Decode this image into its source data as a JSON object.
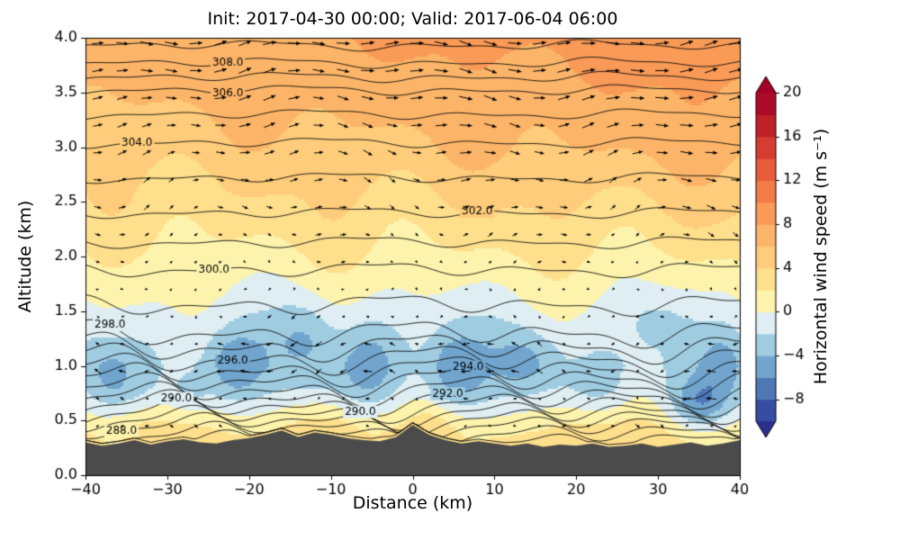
{
  "figure": {
    "title": "Init: 2017-04-30 00:00; Valid: 2017-06-04 06:00",
    "xlabel": "Distance (km)",
    "ylabel": "Altitude (km)",
    "colorbar_label": "Horizontal wind speed (m s⁻¹)"
  },
  "chart_data": {
    "type": "heatmap",
    "subtype": "filled-contour cross-section with potential-temperature contour lines and wind-vector quiver",
    "title": "Init: 2017-04-30 00:00; Valid: 2017-06-04 06:00",
    "xlabel": "Distance (km)",
    "ylabel": "Altitude (km)",
    "xlim": [
      -40,
      40
    ],
    "ylim": [
      0,
      4
    ],
    "grid": false,
    "x_ticks": {
      "values": [
        -40,
        -30,
        -20,
        -10,
        0,
        10,
        20,
        30,
        40
      ],
      "labels": [
        "−40",
        "−30",
        "−20",
        "−10",
        "0",
        "10",
        "20",
        "30",
        "40"
      ]
    },
    "y_ticks": {
      "values": [
        0,
        0.5,
        1.0,
        1.5,
        2.0,
        2.5,
        3.0,
        3.5,
        4.0
      ],
      "labels": [
        "0.0",
        "0.5",
        "1.0",
        "1.5",
        "2.0",
        "2.5",
        "3.0",
        "3.5",
        "4.0"
      ]
    },
    "colorbar": {
      "label": "Horizontal wind speed (m s⁻¹)",
      "tick_values": [
        20,
        16,
        12,
        8,
        4,
        0,
        -4,
        -8
      ],
      "tick_labels": [
        "20",
        "16",
        "12",
        "8",
        "4",
        "0",
        "−4",
        "−8"
      ],
      "vmin": -10,
      "vmax": 20,
      "band_step": 2,
      "extend": "both",
      "colormap": "RdYlBu_r",
      "under_color": "#2b2f8c",
      "over_color": "#a50026",
      "colormap_stops": [
        [
          -10,
          "#2d3a96"
        ],
        [
          -8,
          "#3f5fab"
        ],
        [
          -6,
          "#5c8ec1"
        ],
        [
          -4,
          "#86bcd8"
        ],
        [
          -2,
          "#b8dcea"
        ],
        [
          -1,
          "#dfeef2"
        ],
        [
          0,
          "#f7f7c3"
        ],
        [
          1,
          "#fdf3ac"
        ],
        [
          2,
          "#fee795"
        ],
        [
          4,
          "#fed683"
        ],
        [
          6,
          "#fdc171"
        ],
        [
          8,
          "#fba95e"
        ],
        [
          10,
          "#f78b4d"
        ],
        [
          12,
          "#ef6c42"
        ],
        [
          14,
          "#e04c36"
        ],
        [
          16,
          "#cc2d2b"
        ],
        [
          18,
          "#b41427"
        ],
        [
          20,
          "#a50026"
        ]
      ]
    },
    "wind_field": {
      "units": "m s⁻¹",
      "profile": [
        [
          0.0,
          1.8
        ],
        [
          0.3,
          2.4
        ],
        [
          0.45,
          1.4
        ],
        [
          0.6,
          0.0
        ],
        [
          0.8,
          -1.6
        ],
        [
          1.0,
          -2.2
        ],
        [
          1.2,
          -1.8
        ],
        [
          1.5,
          -0.5
        ],
        [
          1.8,
          0.8
        ],
        [
          2.1,
          2.2
        ],
        [
          2.4,
          3.4
        ],
        [
          2.7,
          4.6
        ],
        [
          3.0,
          5.8
        ],
        [
          3.4,
          6.9
        ],
        [
          3.7,
          7.6
        ],
        [
          4.0,
          8.2
        ]
      ],
      "anomalies": [
        [
          -37,
          0.9,
          -2.0,
          3.0,
          0.3
        ],
        [
          -27,
          0.75,
          -2.0,
          2.5,
          0.2
        ],
        [
          -22,
          1.0,
          -3.5,
          3.5,
          0.35
        ],
        [
          -13,
          1.3,
          -2.5,
          3.5,
          0.35
        ],
        [
          -5,
          1.0,
          -3.0,
          4.0,
          0.45
        ],
        [
          5,
          0.95,
          -3.5,
          3.5,
          0.4
        ],
        [
          14,
          1.05,
          -2.5,
          3.5,
          0.3
        ],
        [
          23,
          0.8,
          -1.5,
          3.0,
          0.25
        ],
        [
          30,
          1.45,
          -1.5,
          4.0,
          0.25
        ],
        [
          35,
          0.65,
          -4.5,
          3.5,
          0.22
        ],
        [
          38,
          1.0,
          -2.0,
          2.5,
          0.3
        ],
        [
          -33,
          0.45,
          2.0,
          4.0,
          0.2
        ],
        [
          -9,
          0.45,
          2.5,
          5.0,
          0.25
        ],
        [
          3,
          0.5,
          1.5,
          3.0,
          0.2
        ],
        [
          20,
          0.45,
          1.5,
          5.0,
          0.2
        ]
      ]
    },
    "theta_contours": {
      "units": "K",
      "levels": [
        286,
        287,
        288,
        289,
        290,
        291,
        292,
        293,
        294,
        295,
        296,
        297,
        298,
        299,
        300,
        301,
        302,
        303,
        304,
        305,
        306,
        307,
        308,
        309
      ],
      "level_altitudes_km": [
        0.3,
        0.37,
        0.44,
        0.5,
        0.56,
        0.63,
        0.7,
        0.78,
        0.87,
        0.96,
        1.06,
        1.17,
        1.3,
        1.56,
        1.88,
        2.13,
        2.4,
        2.72,
        3.04,
        3.3,
        3.52,
        3.64,
        3.77,
        3.93
      ]
    },
    "contour_labels": [
      {
        "text": "308.0",
        "x_km": -22.6,
        "z_km": 3.73
      },
      {
        "text": "306.0",
        "x_km": -22.6,
        "z_km": 3.5
      },
      {
        "text": "304.0",
        "x_km": -33.7,
        "z_km": 3.03
      },
      {
        "text": "302.0",
        "x_km": 7.9,
        "z_km": 2.35
      },
      {
        "text": "300.0",
        "x_km": -24.3,
        "z_km": 1.92
      },
      {
        "text": "298.0",
        "x_km": -37.0,
        "z_km": 1.18
      },
      {
        "text": "296.0",
        "x_km": -22.0,
        "z_km": 0.77
      },
      {
        "text": "294.0",
        "x_km": 6.8,
        "z_km": 0.75
      },
      {
        "text": "292.0",
        "x_km": 4.3,
        "z_km": 0.53
      },
      {
        "text": "290.0",
        "x_km": -28.9,
        "z_km": 0.51
      },
      {
        "text": "290.0",
        "x_km": -6.4,
        "z_km": 0.37
      },
      {
        "text": "288.0",
        "x_km": -35.6,
        "z_km": 0.37
      }
    ],
    "terrain_profile": {
      "color": "#4b4b4b",
      "x_km": [
        -40,
        -38,
        -36,
        -34,
        -32,
        -30,
        -28,
        -26,
        -24,
        -22,
        -20,
        -18,
        -16,
        -14,
        -12,
        -10,
        -8,
        -6,
        -4,
        -2,
        0,
        2,
        4,
        6,
        8,
        10,
        12,
        14,
        16,
        18,
        20,
        22,
        24,
        26,
        28,
        30,
        32,
        34,
        36,
        38,
        40
      ],
      "height_km": [
        0.3,
        0.27,
        0.29,
        0.32,
        0.28,
        0.31,
        0.33,
        0.3,
        0.29,
        0.32,
        0.34,
        0.37,
        0.41,
        0.35,
        0.39,
        0.37,
        0.34,
        0.32,
        0.31,
        0.35,
        0.46,
        0.37,
        0.32,
        0.29,
        0.31,
        0.29,
        0.27,
        0.29,
        0.26,
        0.28,
        0.27,
        0.29,
        0.26,
        0.27,
        0.29,
        0.26,
        0.28,
        0.3,
        0.27,
        0.29,
        0.32
      ]
    },
    "quiver": {
      "x_start": -38.5,
      "x_step": 3,
      "z_rows": [
        0.45,
        0.7,
        0.95,
        1.2,
        1.45,
        1.7,
        1.95,
        2.2,
        2.45,
        2.7,
        2.95,
        3.2,
        3.45,
        3.7,
        3.95
      ]
    }
  }
}
